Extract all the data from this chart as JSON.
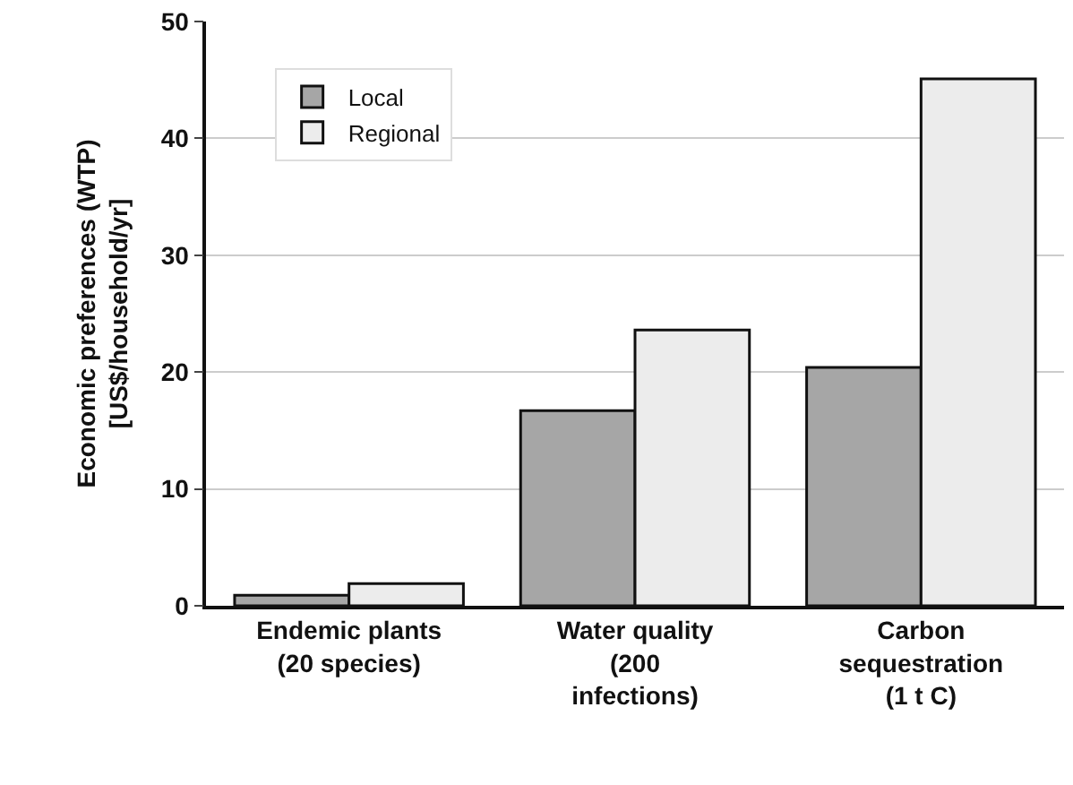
{
  "chart_data": {
    "type": "bar",
    "ylabel": "Economic preferences (WTP)\n[US$/household/yr]",
    "categories": [
      "Endemic plants\n(20 species)",
      "Water quality\n(200\ninfections)",
      "Carbon\nsequestration\n(1 t C)"
    ],
    "series": [
      {
        "name": "Local",
        "color": "#a6a6a6",
        "values": [
          0.9,
          16.7,
          20.4
        ]
      },
      {
        "name": "Regional",
        "color": "#ececec",
        "values": [
          1.9,
          23.6,
          45.1
        ]
      }
    ],
    "ylim": [
      0,
      50
    ],
    "yticks": [
      0,
      10,
      20,
      30,
      40,
      50
    ],
    "grid": "y",
    "legend": "top left"
  }
}
